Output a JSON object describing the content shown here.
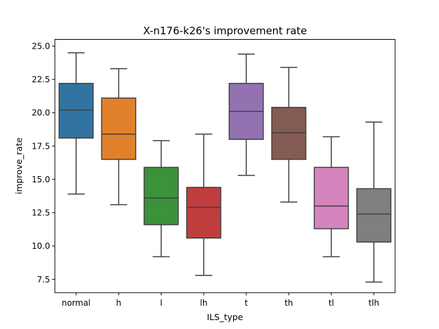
{
  "chart_data": {
    "type": "box",
    "title": "X-n176-k26's improvement rate",
    "xlabel": "ILS_type",
    "ylabel": "improve_rate",
    "ylim": [
      6.5,
      25.5
    ],
    "yticks": [
      "7.5",
      "10.0",
      "12.5",
      "15.0",
      "17.5",
      "20.0",
      "22.5",
      "25.0"
    ],
    "grid": false,
    "categories": [
      "normal",
      "h",
      "l",
      "lh",
      "t",
      "th",
      "tl",
      "tlh"
    ],
    "colors": [
      "#3274a1",
      "#e1812c",
      "#3a923a",
      "#c03d3e",
      "#9372b2",
      "#845b53",
      "#d684bd",
      "#7f7f7f"
    ],
    "boxes": [
      {
        "whislo": 13.9,
        "q1": 18.1,
        "med": 20.2,
        "q3": 22.2,
        "whishi": 24.5
      },
      {
        "whislo": 13.1,
        "q1": 16.5,
        "med": 18.4,
        "q3": 21.1,
        "whishi": 23.3
      },
      {
        "whislo": 9.2,
        "q1": 11.6,
        "med": 13.6,
        "q3": 15.9,
        "whishi": 17.9
      },
      {
        "whislo": 7.8,
        "q1": 10.6,
        "med": 12.9,
        "q3": 14.4,
        "whishi": 18.4
      },
      {
        "whislo": 15.3,
        "q1": 18.0,
        "med": 20.1,
        "q3": 22.2,
        "whishi": 24.4
      },
      {
        "whislo": 13.3,
        "q1": 16.5,
        "med": 18.5,
        "q3": 20.4,
        "whishi": 23.4
      },
      {
        "whislo": 9.2,
        "q1": 11.3,
        "med": 13.0,
        "q3": 15.9,
        "whishi": 18.2
      },
      {
        "whislo": 7.3,
        "q1": 10.3,
        "med": 12.4,
        "q3": 14.3,
        "whishi": 19.3
      }
    ]
  }
}
